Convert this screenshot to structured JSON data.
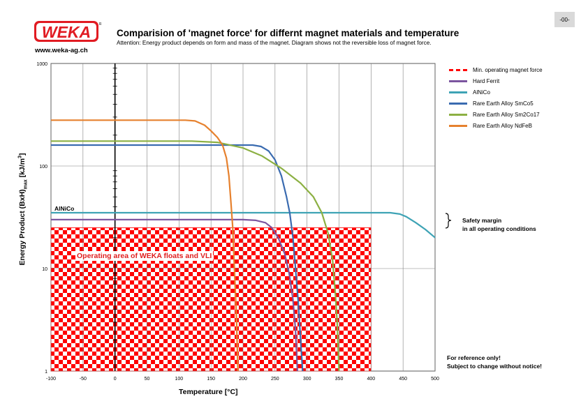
{
  "page_number": "-00-",
  "logo": {
    "text": "WEKA",
    "mark": "R",
    "url": "www.weka-ag.ch"
  },
  "header": {
    "title": "Comparision of 'magnet force' for differnt magnet materials and temperature",
    "subtitle": "Attention: Energy product depends on form and mass of the magnet. Diagram shows not the reversible loss of magnet force."
  },
  "annotations": {
    "alnico": "AlNiCo",
    "operating_area": "Operating area of WEKA floats and VLI",
    "safety_margin_line1": "Safety margin",
    "safety_margin_line2": "in all operating conditions",
    "reference_line1": "For reference only!",
    "reference_line2": "Subject to change without notice!"
  },
  "colors": {
    "min_force": "#ff0000",
    "hard_ferrit": "#7b559f",
    "alnico": "#3ea3b5",
    "smco5": "#3a6bb0",
    "sm2co17": "#8cb043",
    "ndfeb": "#e6812e",
    "grid": "#808080",
    "check_red": "#ff0000"
  },
  "chart_data": {
    "type": "line",
    "xlabel": "Temperature [°C]",
    "ylabel": "Energy Product (BxH)max [kJ/m³]",
    "xlim": [
      -100,
      500
    ],
    "ylim": [
      1,
      1000
    ],
    "yscale": "log",
    "x_ticks": [
      "-100",
      "-50",
      "0",
      "50",
      "100",
      "150",
      "200",
      "250",
      "300",
      "350",
      "400",
      "450",
      "500"
    ],
    "y_ticks": [
      "1",
      "10",
      "100",
      "1000"
    ],
    "grid": true,
    "legend_position": "right",
    "operating_area": {
      "x": [
        -100,
        400
      ],
      "y_max": 25
    },
    "series": [
      {
        "name": "Min. operating magnet force",
        "key": "min_force",
        "dashed": true,
        "points": []
      },
      {
        "name": "Hard Ferrit",
        "key": "hard_ferrit",
        "points": [
          [
            -100,
            30
          ],
          [
            200,
            30
          ],
          [
            220,
            29.5
          ],
          [
            235,
            28
          ],
          [
            245,
            25
          ],
          [
            255,
            20
          ],
          [
            265,
            14
          ],
          [
            272,
            9
          ],
          [
            278,
            5
          ],
          [
            282,
            2.5
          ],
          [
            285,
            1
          ]
        ]
      },
      {
        "name": "AlNiCo",
        "key": "alnico",
        "points": [
          [
            -100,
            35
          ],
          [
            400,
            35
          ],
          [
            430,
            35
          ],
          [
            445,
            34
          ],
          [
            455,
            32
          ],
          [
            470,
            28
          ],
          [
            485,
            24
          ],
          [
            500,
            20
          ]
        ]
      },
      {
        "name": "Rare Earth Alloy SmCo5",
        "key": "smco5",
        "points": [
          [
            -100,
            160
          ],
          [
            200,
            160
          ],
          [
            215,
            160
          ],
          [
            228,
            155
          ],
          [
            240,
            140
          ],
          [
            250,
            115
          ],
          [
            260,
            80
          ],
          [
            268,
            50
          ],
          [
            273,
            35
          ],
          [
            278,
            20
          ],
          [
            282,
            10
          ],
          [
            286,
            5
          ],
          [
            290,
            2
          ],
          [
            293,
            1
          ]
        ]
      },
      {
        "name": "Rare Earth Alloy Sm2Co17",
        "key": "sm2co17",
        "points": [
          [
            -100,
            175
          ],
          [
            120,
            175
          ],
          [
            160,
            170
          ],
          [
            200,
            150
          ],
          [
            230,
            125
          ],
          [
            260,
            95
          ],
          [
            290,
            68
          ],
          [
            310,
            50
          ],
          [
            323,
            35
          ],
          [
            333,
            22
          ],
          [
            340,
            12
          ],
          [
            344,
            6
          ],
          [
            347,
            3
          ],
          [
            350,
            1
          ]
        ]
      },
      {
        "name": "Rare Earth Alloy NdFeB",
        "key": "ndfeb",
        "points": [
          [
            -100,
            280
          ],
          [
            110,
            280
          ],
          [
            125,
            275
          ],
          [
            140,
            250
          ],
          [
            150,
            220
          ],
          [
            160,
            190
          ],
          [
            168,
            160
          ],
          [
            174,
            120
          ],
          [
            178,
            80
          ],
          [
            181,
            45
          ],
          [
            184,
            25
          ],
          [
            186,
            12
          ],
          [
            188,
            6
          ],
          [
            190,
            3
          ],
          [
            192,
            1
          ]
        ]
      }
    ]
  }
}
